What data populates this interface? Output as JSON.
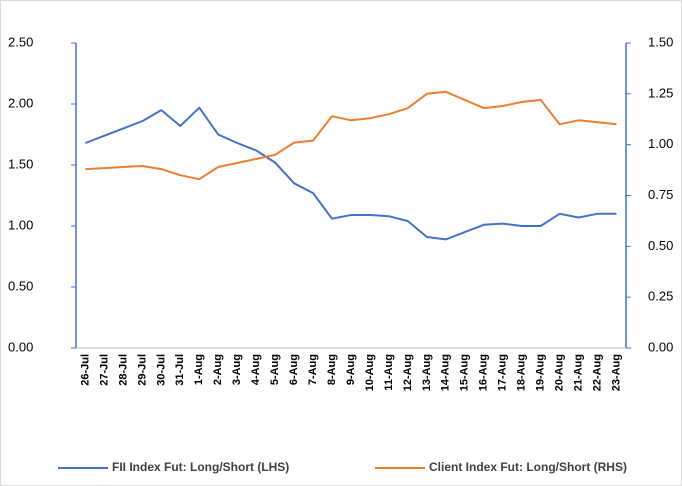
{
  "chart_data": {
    "type": "line",
    "categories": [
      "26-Jul",
      "27-Jul",
      "28-Jul",
      "29-Jul",
      "30-Jul",
      "31-Jul",
      "1-Aug",
      "2-Aug",
      "3-Aug",
      "4-Aug",
      "5-Aug",
      "6-Aug",
      "7-Aug",
      "8-Aug",
      "9-Aug",
      "10-Aug",
      "11-Aug",
      "12-Aug",
      "13-Aug",
      "14-Aug",
      "15-Aug",
      "16-Aug",
      "17-Aug",
      "18-Aug",
      "19-Aug",
      "20-Aug",
      "21-Aug",
      "22-Aug",
      "23-Aug"
    ],
    "series": [
      {
        "name": "FII Index Fut: Long/Short (LHS)",
        "color": "#4472c4",
        "values": [
          1.68,
          1.74,
          1.8,
          1.86,
          1.95,
          1.82,
          1.97,
          1.75,
          1.68,
          1.62,
          1.52,
          1.35,
          1.27,
          1.06,
          1.09,
          1.09,
          1.08,
          1.04,
          0.91,
          0.89,
          0.95,
          1.01,
          1.02,
          1.0,
          1.0,
          1.1,
          1.07,
          1.1,
          1.1
        ]
      },
      {
        "name": "Client Index Fut: Long/Short (RHS)",
        "color": "#ed7d31",
        "axis": "y2",
        "values": [
          0.88,
          0.885,
          0.89,
          0.895,
          0.88,
          0.85,
          0.83,
          0.89,
          0.91,
          0.93,
          0.95,
          1.01,
          1.02,
          1.14,
          1.12,
          1.13,
          1.15,
          1.18,
          1.25,
          1.26,
          1.22,
          1.18,
          1.19,
          1.21,
          1.22,
          1.1,
          1.12,
          1.11,
          1.1
        ]
      }
    ],
    "ylim": [
      0,
      2.5
    ],
    "yticks": [
      {
        "value": 0,
        "label": "0.00"
      },
      {
        "value": 0.5,
        "label": "0.50"
      },
      {
        "value": 1,
        "label": "1.00"
      },
      {
        "value": 1.5,
        "label": "1.50"
      },
      {
        "value": 2,
        "label": "2.00"
      },
      {
        "value": 2.5,
        "label": "2.50"
      }
    ],
    "y2lim": [
      0,
      1.5
    ],
    "y2ticks": [
      {
        "value": 0,
        "label": "0.00"
      },
      {
        "value": 0.25,
        "label": "0.25"
      },
      {
        "value": 0.5,
        "label": "0.50"
      },
      {
        "value": 0.75,
        "label": "0.75"
      },
      {
        "value": 1,
        "label": "1.00"
      },
      {
        "value": 1.25,
        "label": "1.25"
      },
      {
        "value": 1.5,
        "label": "1.50"
      }
    ],
    "legend": "bottom"
  }
}
